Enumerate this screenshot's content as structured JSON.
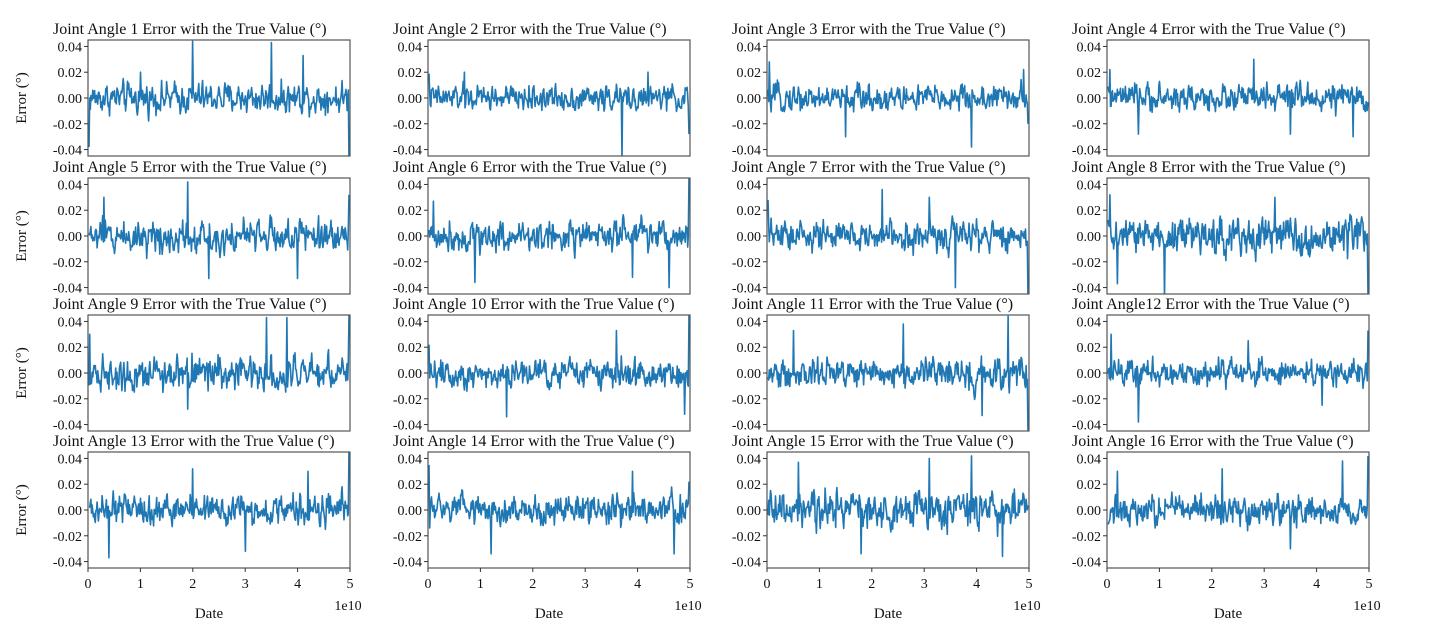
{
  "figure": {
    "xlabel": "Date",
    "ylabel": "Error (°)",
    "x_offset_label": "1e10",
    "series_color": "#1f77b4",
    "frame_color": "#555555"
  },
  "chart_data": [
    {
      "type": "line",
      "title": "Joint Angle 1 Error with the True Value (°)",
      "xlim": [
        0,
        5
      ],
      "ylim": [
        -0.045,
        0.045
      ],
      "yticks": [
        "0.04",
        "0.02",
        "0.00",
        "-0.02",
        "-0.04"
      ],
      "xticks": [
        "0",
        "1",
        "2",
        "3",
        "4",
        "5"
      ],
      "noise_sd": 0.0085,
      "spikes": [
        [
          0.02,
          -0.038
        ],
        [
          1.0,
          0.02
        ],
        [
          2.0,
          0.044
        ],
        [
          3.5,
          0.043
        ],
        [
          4.1,
          0.033
        ],
        [
          5.0,
          -0.05
        ]
      ]
    },
    {
      "type": "line",
      "title": "Joint Angle 2 Error with the True Value (°)",
      "xlim": [
        0,
        5
      ],
      "ylim": [
        -0.045,
        0.045
      ],
      "yticks": [
        "0.04",
        "0.02",
        "0.00",
        "-0.02",
        "-0.04"
      ],
      "xticks": [
        "0",
        "1",
        "2",
        "3",
        "4",
        "5"
      ],
      "noise_sd": 0.007,
      "spikes": [
        [
          0.0,
          0.019
        ],
        [
          0.7,
          0.02
        ],
        [
          3.7,
          -0.048
        ],
        [
          4.2,
          0.02
        ],
        [
          5.0,
          -0.028
        ]
      ]
    },
    {
      "type": "line",
      "title": "Joint Angle 3 Error with the True Value (°)",
      "xlim": [
        0,
        5
      ],
      "ylim": [
        -0.045,
        0.045
      ],
      "yticks": [
        "0.04",
        "0.02",
        "0.00",
        "-0.02",
        "-0.04"
      ],
      "xticks": [
        "0",
        "1",
        "2",
        "3",
        "4",
        "5"
      ],
      "noise_sd": 0.0075,
      "spikes": [
        [
          0.04,
          0.028
        ],
        [
          1.5,
          -0.03
        ],
        [
          3.9,
          -0.038
        ],
        [
          4.9,
          0.022
        ],
        [
          5.0,
          -0.02
        ]
      ]
    },
    {
      "type": "line",
      "title": "Joint Angle 4 Error with the True Value (°)",
      "xlim": [
        0,
        5
      ],
      "ylim": [
        -0.045,
        0.045
      ],
      "yticks": [
        "0.04",
        "0.02",
        "0.00",
        "-0.02",
        "-0.04"
      ],
      "xticks": [
        "0",
        "1",
        "2",
        "3",
        "4",
        "5"
      ],
      "noise_sd": 0.0075,
      "spikes": [
        [
          0.05,
          0.022
        ],
        [
          0.6,
          -0.028
        ],
        [
          2.8,
          0.03
        ],
        [
          3.5,
          -0.028
        ],
        [
          4.7,
          -0.03
        ]
      ]
    },
    {
      "type": "line",
      "title": "Joint Angle 5 Error with the True Value (°)",
      "xlim": [
        0,
        5
      ],
      "ylim": [
        -0.045,
        0.045
      ],
      "yticks": [
        "0.04",
        "0.02",
        "0.00",
        "-0.02",
        "-0.04"
      ],
      "xticks": [
        "0",
        "1",
        "2",
        "3",
        "4",
        "5"
      ],
      "noise_sd": 0.0095,
      "spikes": [
        [
          0.3,
          0.03
        ],
        [
          1.9,
          0.042
        ],
        [
          2.3,
          -0.033
        ],
        [
          4.0,
          -0.033
        ],
        [
          5.0,
          0.032
        ]
      ]
    },
    {
      "type": "line",
      "title": "Joint Angle 6 Error with the True Value (°)",
      "xlim": [
        0,
        5
      ],
      "ylim": [
        -0.045,
        0.045
      ],
      "yticks": [
        "0.04",
        "0.02",
        "0.00",
        "-0.02",
        "-0.04"
      ],
      "xticks": [
        "0",
        "1",
        "2",
        "3",
        "4",
        "5"
      ],
      "noise_sd": 0.0085,
      "spikes": [
        [
          0.1,
          0.027
        ],
        [
          0.9,
          -0.036
        ],
        [
          3.9,
          -0.032
        ],
        [
          4.6,
          -0.04
        ],
        [
          5.0,
          0.046
        ]
      ]
    },
    {
      "type": "line",
      "title": "Joint Angle 7 Error with the True Value (°)",
      "xlim": [
        0,
        5
      ],
      "ylim": [
        -0.045,
        0.045
      ],
      "yticks": [
        "0.04",
        "0.02",
        "0.00",
        "-0.02",
        "-0.04"
      ],
      "xticks": [
        "0",
        "1",
        "2",
        "3",
        "4",
        "5"
      ],
      "noise_sd": 0.0085,
      "spikes": [
        [
          0.0,
          0.028
        ],
        [
          2.2,
          0.036
        ],
        [
          3.1,
          0.03
        ],
        [
          3.6,
          -0.04
        ],
        [
          5.0,
          -0.05
        ]
      ]
    },
    {
      "type": "line",
      "title": "Joint Angle 8 Error with the True Value (°)",
      "xlim": [
        0,
        5
      ],
      "ylim": [
        -0.045,
        0.045
      ],
      "yticks": [
        "0.04",
        "0.02",
        "0.00",
        "-0.02",
        "-0.04"
      ],
      "xticks": [
        "0",
        "1",
        "2",
        "3",
        "4",
        "5"
      ],
      "noise_sd": 0.0105,
      "spikes": [
        [
          0.05,
          0.032
        ],
        [
          0.2,
          -0.037
        ],
        [
          1.1,
          -0.048
        ],
        [
          3.2,
          0.03
        ],
        [
          5.0,
          -0.048
        ]
      ]
    },
    {
      "type": "line",
      "title": "Joint Angle 9 Error with the True Value (°)",
      "xlim": [
        0,
        5
      ],
      "ylim": [
        -0.045,
        0.045
      ],
      "yticks": [
        "0.04",
        "0.02",
        "0.00",
        "-0.02",
        "-0.04"
      ],
      "xticks": [
        "0",
        "1",
        "2",
        "3",
        "4",
        "5"
      ],
      "noise_sd": 0.0095,
      "spikes": [
        [
          0.03,
          0.03
        ],
        [
          1.9,
          -0.028
        ],
        [
          3.4,
          0.043
        ],
        [
          3.8,
          0.043
        ],
        [
          5.0,
          0.045
        ]
      ]
    },
    {
      "type": "line",
      "title": "Joint Angle 10 Error with the True Value (°)",
      "xlim": [
        0,
        5
      ],
      "ylim": [
        -0.045,
        0.045
      ],
      "yticks": [
        "0.04",
        "0.02",
        "0.00",
        "-0.02",
        "-0.04"
      ],
      "xticks": [
        "0",
        "1",
        "2",
        "3",
        "4",
        "5"
      ],
      "noise_sd": 0.0085,
      "spikes": [
        [
          0.0,
          0.022
        ],
        [
          1.5,
          -0.034
        ],
        [
          3.6,
          0.033
        ],
        [
          4.9,
          -0.032
        ],
        [
          5.0,
          0.046
        ]
      ]
    },
    {
      "type": "line",
      "title": "Joint Angle 11 Error with the True Value (°)",
      "xlim": [
        0,
        5
      ],
      "ylim": [
        -0.045,
        0.045
      ],
      "yticks": [
        "0.04",
        "0.02",
        "0.00",
        "-0.02",
        "-0.04"
      ],
      "xticks": [
        "0",
        "1",
        "2",
        "3",
        "4",
        "5"
      ],
      "noise_sd": 0.0085,
      "spikes": [
        [
          0.5,
          0.033
        ],
        [
          2.6,
          0.038
        ],
        [
          4.6,
          0.044
        ],
        [
          4.1,
          -0.033
        ],
        [
          5.0,
          -0.047
        ]
      ]
    },
    {
      "type": "line",
      "title": "Joint Angle12 Error with the True Value (°)",
      "xlim": [
        0,
        5
      ],
      "ylim": [
        -0.045,
        0.045
      ],
      "yticks": [
        "0.04",
        "0.02",
        "0.00",
        "-0.02",
        "-0.04"
      ],
      "xticks": [
        "0",
        "1",
        "2",
        "3",
        "4",
        "5"
      ],
      "noise_sd": 0.0075,
      "spikes": [
        [
          0.08,
          0.03
        ],
        [
          0.6,
          -0.038
        ],
        [
          2.7,
          0.025
        ],
        [
          4.1,
          -0.025
        ],
        [
          5.0,
          0.033
        ]
      ]
    },
    {
      "type": "line",
      "title": "Joint Angle 13 Error with the True Value (°)",
      "xlim": [
        0,
        5
      ],
      "ylim": [
        -0.045,
        0.045
      ],
      "yticks": [
        "0.04",
        "0.02",
        "0.00",
        "-0.02",
        "-0.04"
      ],
      "xticks": [
        "0",
        "1",
        "2",
        "3",
        "4",
        "5"
      ],
      "noise_sd": 0.0085,
      "spikes": [
        [
          0.4,
          -0.037
        ],
        [
          2.0,
          0.032
        ],
        [
          3.0,
          -0.032
        ],
        [
          4.2,
          0.03
        ],
        [
          5.0,
          0.048
        ]
      ]
    },
    {
      "type": "line",
      "title": "Joint Angle 14 Error with the True Value (°)",
      "xlim": [
        0,
        5
      ],
      "ylim": [
        -0.045,
        0.045
      ],
      "yticks": [
        "0.04",
        "0.02",
        "0.00",
        "-0.02",
        "-0.04"
      ],
      "xticks": [
        "0",
        "1",
        "2",
        "3",
        "4",
        "5"
      ],
      "noise_sd": 0.0085,
      "spikes": [
        [
          0.0,
          0.035
        ],
        [
          1.2,
          -0.034
        ],
        [
          3.9,
          0.03
        ],
        [
          4.7,
          -0.034
        ],
        [
          5.0,
          0.022
        ]
      ]
    },
    {
      "type": "line",
      "title": "Joint Angle 15 Error with the True Value (°)",
      "xlim": [
        0,
        5
      ],
      "ylim": [
        -0.045,
        0.045
      ],
      "yticks": [
        "0.04",
        "0.02",
        "0.00",
        "-0.02",
        "-0.04"
      ],
      "xticks": [
        "0",
        "1",
        "2",
        "3",
        "4",
        "5"
      ],
      "noise_sd": 0.0105,
      "spikes": [
        [
          0.6,
          0.037
        ],
        [
          1.8,
          -0.034
        ],
        [
          3.1,
          0.04
        ],
        [
          3.9,
          0.042
        ],
        [
          4.5,
          -0.036
        ]
      ]
    },
    {
      "type": "line",
      "title": "Joint Angle 16 Error with the True Value (°)",
      "xlim": [
        0,
        5
      ],
      "ylim": [
        -0.045,
        0.045
      ],
      "yticks": [
        "0.04",
        "0.02",
        "0.00",
        "-0.02",
        "-0.04"
      ],
      "xticks": [
        "0",
        "1",
        "2",
        "3",
        "4",
        "5"
      ],
      "noise_sd": 0.0085,
      "spikes": [
        [
          0.2,
          0.03
        ],
        [
          2.2,
          0.032
        ],
        [
          3.5,
          -0.03
        ],
        [
          4.5,
          0.038
        ],
        [
          5.0,
          0.042
        ]
      ]
    }
  ]
}
